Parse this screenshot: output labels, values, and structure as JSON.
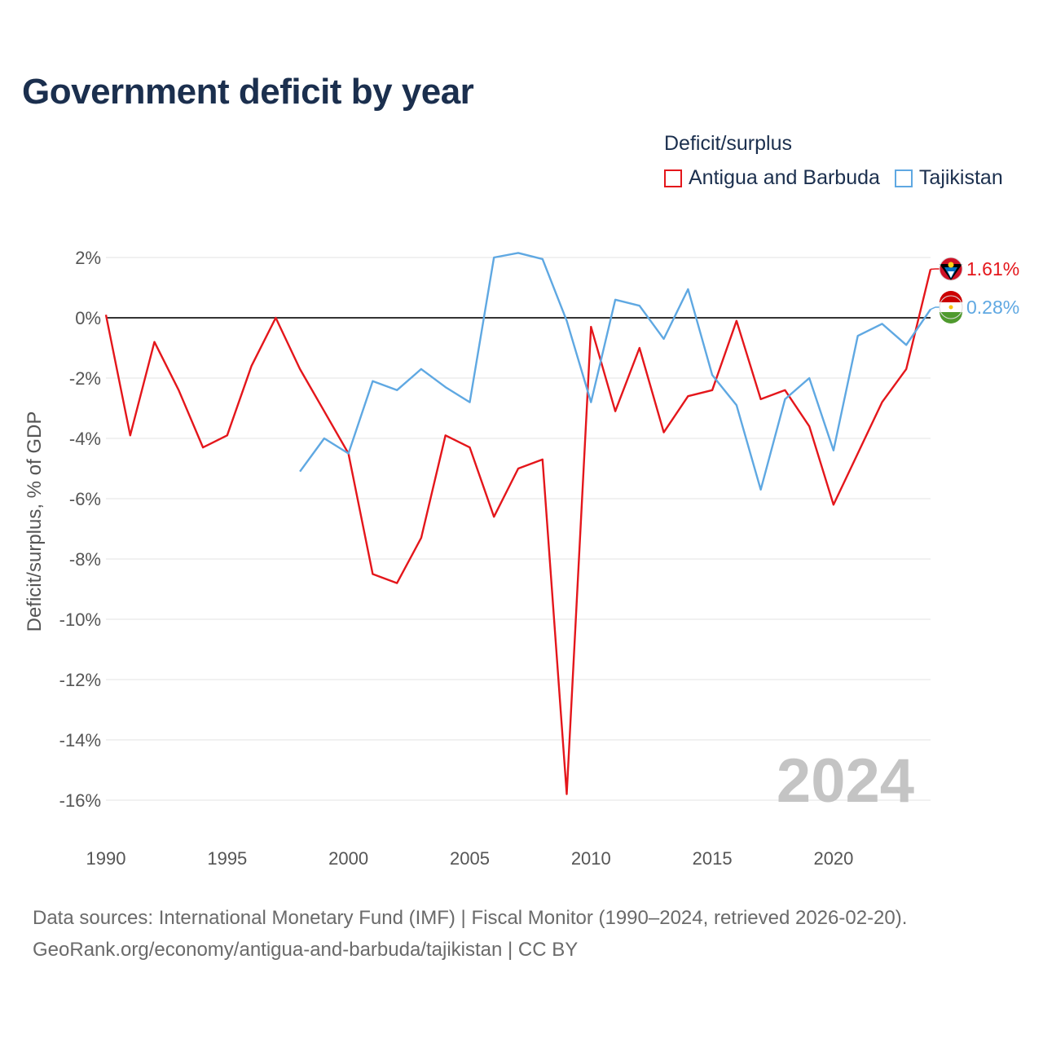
{
  "title": "Government deficit by year",
  "legend": {
    "title": "Deficit/surplus",
    "items": [
      {
        "label": "Antigua and Barbuda",
        "color": "#e4161b"
      },
      {
        "label": "Tajikistan",
        "color": "#5fa8e2"
      }
    ]
  },
  "source": {
    "line1": "Data sources: International Monetary Fund (IMF) | Fiscal Monitor (1990–2024, retrieved 2026-02-20).",
    "line2": "GeoRank.org/economy/antigua-and-barbuda/tajikistan | CC BY"
  },
  "chart_data": {
    "type": "line",
    "title": "Government deficit by year",
    "xlabel": "",
    "ylabel": "Deficit/surplus, % of GDP",
    "xlim": [
      1990,
      2024
    ],
    "ylim": [
      -17,
      2.5
    ],
    "x_ticks": [
      1990,
      1995,
      2000,
      2005,
      2010,
      2015,
      2020
    ],
    "y_ticks": [
      2,
      0,
      -2,
      -4,
      -6,
      -8,
      -10,
      -12,
      -14,
      -16
    ],
    "y_tick_labels": [
      "2%",
      "0%",
      "-2%",
      "-4%",
      "-6%",
      "-8%",
      "-10%",
      "-12%",
      "-14%",
      "-16%"
    ],
    "x_tick_labels": [
      "1990",
      "1995",
      "2000",
      "2005",
      "2010",
      "2015",
      "2020"
    ],
    "year_annotation": "2024",
    "series": [
      {
        "name": "Antigua and Barbuda",
        "color": "#e4161b",
        "end_label": "1.61%",
        "points": [
          [
            1990,
            0.1
          ],
          [
            1991,
            -3.9
          ],
          [
            1992,
            -0.8
          ],
          [
            1993,
            -2.4
          ],
          [
            1994,
            -4.3
          ],
          [
            1995,
            -3.9
          ],
          [
            1996,
            -1.6
          ],
          [
            1997,
            0.0
          ],
          [
            1998,
            -1.7
          ],
          [
            1999,
            -3.1
          ],
          [
            2000,
            -4.5
          ],
          [
            2001,
            -8.5
          ],
          [
            2002,
            -8.8
          ],
          [
            2003,
            -7.3
          ],
          [
            2004,
            -3.9
          ],
          [
            2005,
            -4.3
          ],
          [
            2006,
            -6.6
          ],
          [
            2007,
            -5.0
          ],
          [
            2008,
            -4.7
          ],
          [
            2009,
            -15.8
          ],
          [
            2010,
            -0.3
          ],
          [
            2011,
            -3.1
          ],
          [
            2012,
            -1.0
          ],
          [
            2013,
            -3.8
          ],
          [
            2014,
            -2.6
          ],
          [
            2015,
            -2.4
          ],
          [
            2016,
            -0.1
          ],
          [
            2017,
            -2.7
          ],
          [
            2018,
            -2.4
          ],
          [
            2019,
            -3.6
          ],
          [
            2020,
            -6.2
          ],
          [
            2021,
            -4.5
          ],
          [
            2022,
            -2.8
          ],
          [
            2023,
            -1.7
          ],
          [
            2024,
            1.61
          ]
        ]
      },
      {
        "name": "Tajikistan",
        "color": "#5fa8e2",
        "end_label": "0.28%",
        "points": [
          [
            1998,
            -5.1
          ],
          [
            1999,
            -4.0
          ],
          [
            2000,
            -4.5
          ],
          [
            2001,
            -2.1
          ],
          [
            2002,
            -2.4
          ],
          [
            2003,
            -1.7
          ],
          [
            2004,
            -2.3
          ],
          [
            2005,
            -2.8
          ],
          [
            2006,
            2.0
          ],
          [
            2007,
            2.15
          ],
          [
            2008,
            1.95
          ],
          [
            2009,
            -0.1
          ],
          [
            2010,
            -2.8
          ],
          [
            2011,
            0.6
          ],
          [
            2012,
            0.4
          ],
          [
            2013,
            -0.7
          ],
          [
            2014,
            0.95
          ],
          [
            2015,
            -1.9
          ],
          [
            2016,
            -2.9
          ],
          [
            2017,
            -5.7
          ],
          [
            2018,
            -2.7
          ],
          [
            2019,
            -2.0
          ],
          [
            2020,
            -4.4
          ],
          [
            2021,
            -0.6
          ],
          [
            2022,
            -0.2
          ],
          [
            2023,
            -0.9
          ],
          [
            2024,
            0.28
          ]
        ]
      }
    ]
  }
}
